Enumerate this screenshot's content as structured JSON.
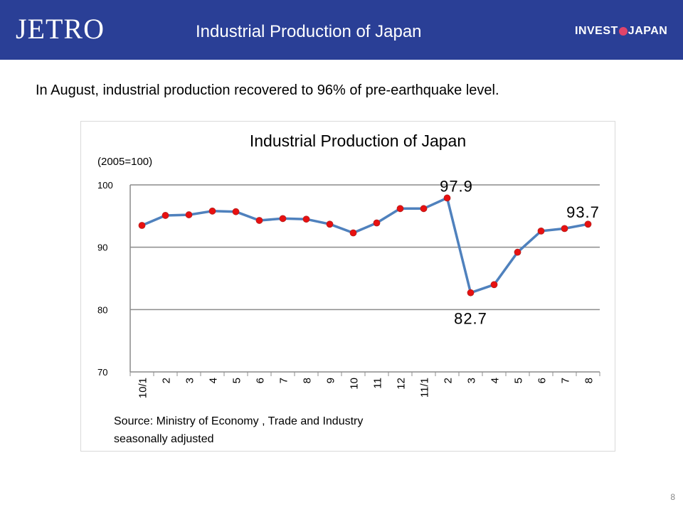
{
  "header": {
    "logo_text": "JETRO",
    "title": "Industrial Production of Japan",
    "logo_right_left": "INVEST",
    "logo_right_right": "JAPAN",
    "bg_color": "#2a3f96"
  },
  "subtitle": "In August, industrial production recovered to 96% of pre-earthquake level.",
  "page_number": "8",
  "chart_data": {
    "type": "line",
    "title": "Industrial Production of Japan",
    "unit_label": "(2005=100)",
    "categories": [
      "10/1",
      "2",
      "3",
      "4",
      "5",
      "6",
      "7",
      "8",
      "9",
      "10",
      "11",
      "12",
      "11/1",
      "2",
      "3",
      "4",
      "5",
      "6",
      "7",
      "8"
    ],
    "series": [
      {
        "values": [
          93.5,
          95.1,
          95.2,
          95.8,
          95.7,
          94.3,
          94.6,
          94.5,
          93.7,
          92.3,
          93.9,
          96.2,
          96.2,
          97.9,
          82.7,
          84.0,
          89.2,
          92.6,
          93.0,
          93.7
        ],
        "color": "#4f81bd",
        "marker_color": "#e81010"
      }
    ],
    "annotations": [
      {
        "index": 13,
        "text": "97.9"
      },
      {
        "index": 14,
        "text": "82.7"
      },
      {
        "index": 19,
        "text": "93.7"
      }
    ],
    "yticks": [
      "70",
      "80",
      "90",
      "100"
    ],
    "ylim": [
      70,
      100
    ],
    "grid": true,
    "source_line1": "Source: Ministry of Economy , Trade and Industry",
    "source_line2": "seasonally adjusted"
  }
}
